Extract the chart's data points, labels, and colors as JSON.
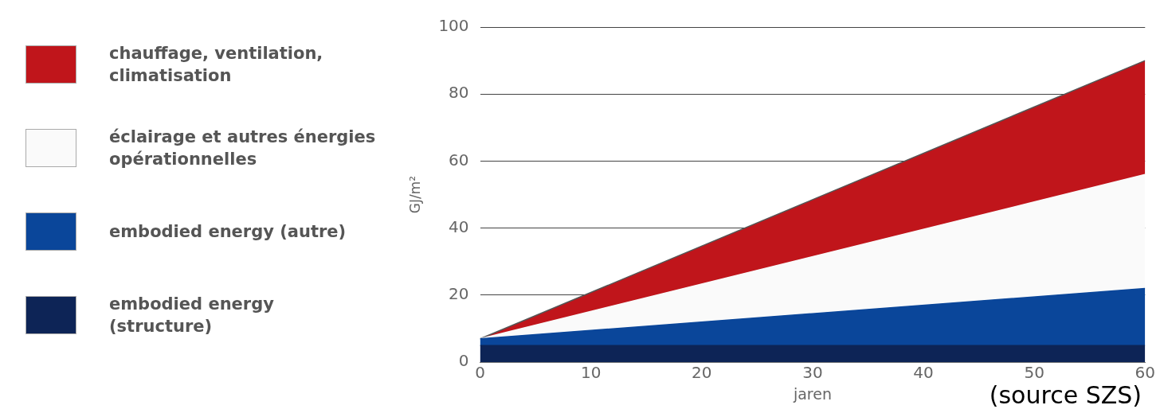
{
  "chart_data": {
    "type": "area",
    "stacked": true,
    "ylabel": "GJ/m²",
    "xlabel": "jaren",
    "x": [
      0,
      60
    ],
    "xlim": [
      0,
      60
    ],
    "xticks": [
      0,
      10,
      20,
      30,
      40,
      50,
      60
    ],
    "ylim": [
      0,
      100
    ],
    "yticks": [
      0,
      20,
      40,
      60,
      80,
      100
    ],
    "grid": "y",
    "legend": "left",
    "annotations": [
      "(source SZS)"
    ],
    "series": [
      {
        "name": "embodied energy (structure)",
        "color": "#0d2456",
        "values": [
          5,
          5
        ]
      },
      {
        "name": "embodied energy (autre)",
        "color": "#0a469a",
        "values": [
          2,
          17
        ]
      },
      {
        "name": "éclairage et autres énergies opérationnelles",
        "color": "#fafafa",
        "values": [
          0,
          34
        ]
      },
      {
        "name": "chauffage, ventilation, climatisation",
        "color": "#c0151b",
        "values": [
          0,
          34
        ]
      }
    ]
  }
}
